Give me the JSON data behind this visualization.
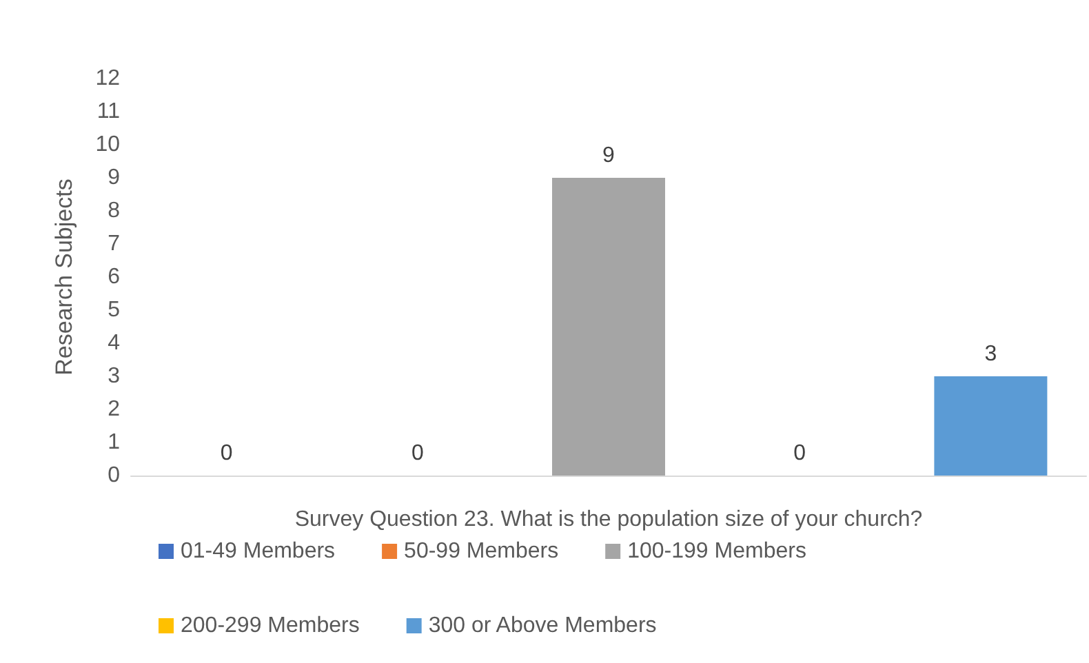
{
  "chart_data": {
    "type": "bar",
    "categories": [
      null,
      null,
      null,
      null,
      null
    ],
    "xlabel": "Survey Question 23. What is the population size of your church?",
    "ylabel": "Research Subjects",
    "ylim": [
      0,
      12
    ],
    "yticks": [
      0,
      1,
      2,
      3,
      4,
      5,
      6,
      7,
      8,
      9,
      10,
      11,
      12
    ],
    "grid": false,
    "legend": "bottom",
    "data_labels": true,
    "series": [
      {
        "name": "01-49 Members",
        "color": "#4472c4",
        "values": [
          0,
          null,
          null,
          null,
          null
        ]
      },
      {
        "name": "50-99 Members",
        "color": "#ed7d31",
        "values": [
          null,
          0,
          null,
          null,
          null
        ]
      },
      {
        "name": "100-199 Members",
        "color": "#a5a5a5",
        "values": [
          null,
          null,
          9,
          null,
          null
        ]
      },
      {
        "name": "200-299 Members",
        "color": "#ffc000",
        "values": [
          null,
          null,
          null,
          0,
          null
        ]
      },
      {
        "name": "300 or Above Members",
        "color": "#5b9bd5",
        "values": [
          null,
          null,
          null,
          null,
          3
        ]
      }
    ]
  }
}
